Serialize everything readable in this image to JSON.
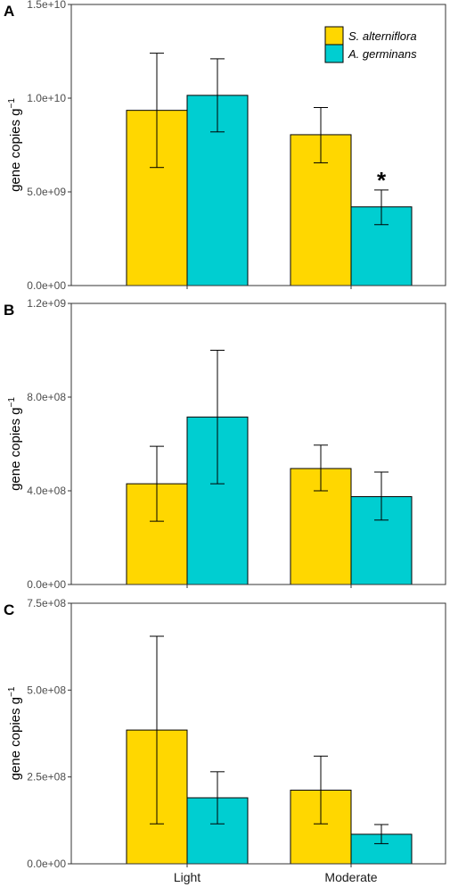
{
  "colors": {
    "s_alterniflora": "#FFD700",
    "a_germinans": "#00CED1"
  },
  "legend": {
    "placement": "top-right",
    "entries": [
      "S. alterniflora",
      "A. germinans"
    ]
  },
  "chart_data": [
    {
      "panel": "A",
      "type": "bar",
      "categories": [
        "Light",
        "Moderate"
      ],
      "ylabel": "gene copies g",
      "ylabel_superscript": "−1",
      "ylim": [
        0,
        15000000000
      ],
      "yticks": [
        0,
        5000000000,
        10000000000,
        15000000000
      ],
      "ytick_labels": [
        "0.0e+00",
        "5.0e+09",
        "1.0e+10",
        "1.5e+10"
      ],
      "series": [
        {
          "name": "S. alterniflora",
          "values": [
            9350000000,
            8050000000
          ],
          "error_low": [
            6300000000,
            6550000000
          ],
          "error_high": [
            12400000000,
            9500000000
          ]
        },
        {
          "name": "A. germinans",
          "values": [
            10150000000,
            4200000000
          ],
          "error_low": [
            8200000000,
            3250000000
          ],
          "error_high": [
            12100000000,
            5100000000
          ]
        }
      ],
      "annotations": [
        {
          "text": "*",
          "category": "Moderate",
          "series": "A. germinans"
        }
      ],
      "show_xlabels": false
    },
    {
      "panel": "B",
      "type": "bar",
      "categories": [
        "Light",
        "Moderate"
      ],
      "ylabel": "gene copies g",
      "ylabel_superscript": "−1",
      "ylim": [
        0,
        1200000000
      ],
      "yticks": [
        0,
        400000000,
        800000000,
        1200000000
      ],
      "ytick_labels": [
        "0.0e+00",
        "4.0e+08",
        "8.0e+08",
        "1.2e+09"
      ],
      "series": [
        {
          "name": "S. alterniflora",
          "values": [
            430000000,
            495000000
          ],
          "error_low": [
            270000000,
            400000000
          ],
          "error_high": [
            590000000,
            595000000
          ]
        },
        {
          "name": "A. germinans",
          "values": [
            715000000,
            375000000
          ],
          "error_low": [
            430000000,
            275000000
          ],
          "error_high": [
            1000000000,
            480000000
          ]
        }
      ],
      "annotations": [],
      "show_xlabels": false
    },
    {
      "panel": "C",
      "type": "bar",
      "categories": [
        "Light",
        "Moderate"
      ],
      "ylabel": "gene copies g",
      "ylabel_superscript": "−1",
      "ylim": [
        0,
        750000000
      ],
      "yticks": [
        0,
        250000000,
        500000000,
        750000000
      ],
      "ytick_labels": [
        "0.0e+00",
        "2.5e+08",
        "5.0e+08",
        "7.5e+08"
      ],
      "series": [
        {
          "name": "S. alterniflora",
          "values": [
            385000000,
            212000000
          ],
          "error_low": [
            115000000,
            115000000
          ],
          "error_high": [
            655000000,
            310000000
          ]
        },
        {
          "name": "A. germinans",
          "values": [
            190000000,
            85000000
          ],
          "error_low": [
            115000000,
            58000000
          ],
          "error_high": [
            265000000,
            113000000
          ]
        }
      ],
      "annotations": [],
      "show_xlabels": true
    }
  ]
}
